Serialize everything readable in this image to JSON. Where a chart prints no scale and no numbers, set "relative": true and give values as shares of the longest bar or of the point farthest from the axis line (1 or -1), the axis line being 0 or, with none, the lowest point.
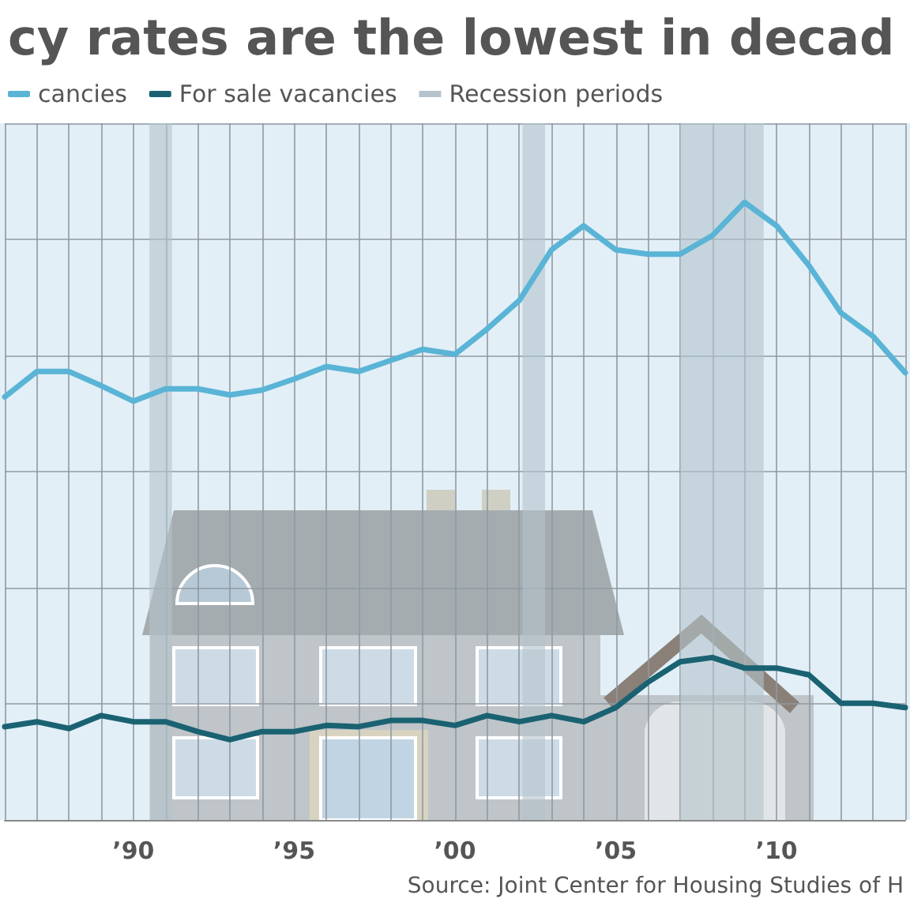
{
  "chart_data": {
    "type": "line",
    "title": "cy rates are the lowest in decad",
    "relative": true,
    "x": [
      1986,
      1987,
      1988,
      1989,
      1990,
      1991,
      1992,
      1993,
      1994,
      1995,
      1996,
      1997,
      1998,
      1999,
      2000,
      2001,
      2002,
      2003,
      2004,
      2005,
      2006,
      2007,
      2008,
      2009,
      2010,
      2011,
      2012,
      2013,
      2014
    ],
    "series": [
      {
        "name": "cancies",
        "color": "#5ab4d6",
        "values": [
          0.685,
          0.726,
          0.726,
          0.703,
          0.678,
          0.698,
          0.698,
          0.688,
          0.696,
          0.714,
          0.734,
          0.726,
          0.744,
          0.762,
          0.754,
          0.795,
          0.841,
          0.923,
          0.962,
          0.923,
          0.916,
          0.916,
          0.946,
          1,
          0.962,
          0.898,
          0.821,
          0.783,
          0.724
        ]
      },
      {
        "name": "For sale vacancies",
        "color": "#1a6272",
        "values": [
          0.151,
          0.159,
          0.148,
          0.169,
          0.159,
          0.159,
          0.143,
          0.13,
          0.143,
          0.143,
          0.153,
          0.151,
          0.161,
          0.161,
          0.153,
          0.169,
          0.159,
          0.169,
          0.159,
          0.182,
          0.223,
          0.256,
          0.263,
          0.246,
          0.246,
          0.235,
          0.189,
          0.189,
          0.182
        ]
      }
    ],
    "xlim": [
      1986,
      2014
    ],
    "xticks": [
      {
        "value": 1986,
        "label": null
      },
      {
        "value": 1987,
        "label": null
      },
      {
        "value": 1988,
        "label": null
      },
      {
        "value": 1989,
        "label": null
      },
      {
        "value": 1990,
        "label": "’90"
      },
      {
        "value": 1991,
        "label": null
      },
      {
        "value": 1992,
        "label": null
      },
      {
        "value": 1993,
        "label": null
      },
      {
        "value": 1994,
        "label": null
      },
      {
        "value": 1995,
        "label": "’95"
      },
      {
        "value": 1996,
        "label": null
      },
      {
        "value": 1997,
        "label": null
      },
      {
        "value": 1998,
        "label": null
      },
      {
        "value": 1999,
        "label": null
      },
      {
        "value": 2000,
        "label": "’00"
      },
      {
        "value": 2001,
        "label": null
      },
      {
        "value": 2002,
        "label": null
      },
      {
        "value": 2003,
        "label": null
      },
      {
        "value": 2004,
        "label": null
      },
      {
        "value": 2005,
        "label": "’05"
      },
      {
        "value": 2006,
        "label": null
      },
      {
        "value": 2007,
        "label": null
      },
      {
        "value": 2008,
        "label": null
      },
      {
        "value": 2009,
        "label": null
      },
      {
        "value": 2010,
        "label": "’10"
      },
      {
        "value": 2011,
        "label": null
      },
      {
        "value": 2012,
        "label": null
      },
      {
        "value": 2013,
        "label": null
      },
      {
        "value": 2014,
        "label": null
      }
    ],
    "bands": [
      {
        "axis": "x",
        "from": 1990.5,
        "to": 1991.2,
        "label": "Recession periods",
        "color": "#b4c3cc"
      },
      {
        "axis": "x",
        "from": 2002.1,
        "to": 2002.8,
        "color": "#b4c3cc"
      },
      {
        "axis": "x",
        "from": 2007.0,
        "to": 2009.6,
        "color": "#b4c3cc"
      }
    ],
    "grid": true,
    "legend": "top left",
    "marker": "none",
    "line_style": "solid",
    "annotations": [
      "Source: Joint Center for Housing Studies of H"
    ]
  }
}
